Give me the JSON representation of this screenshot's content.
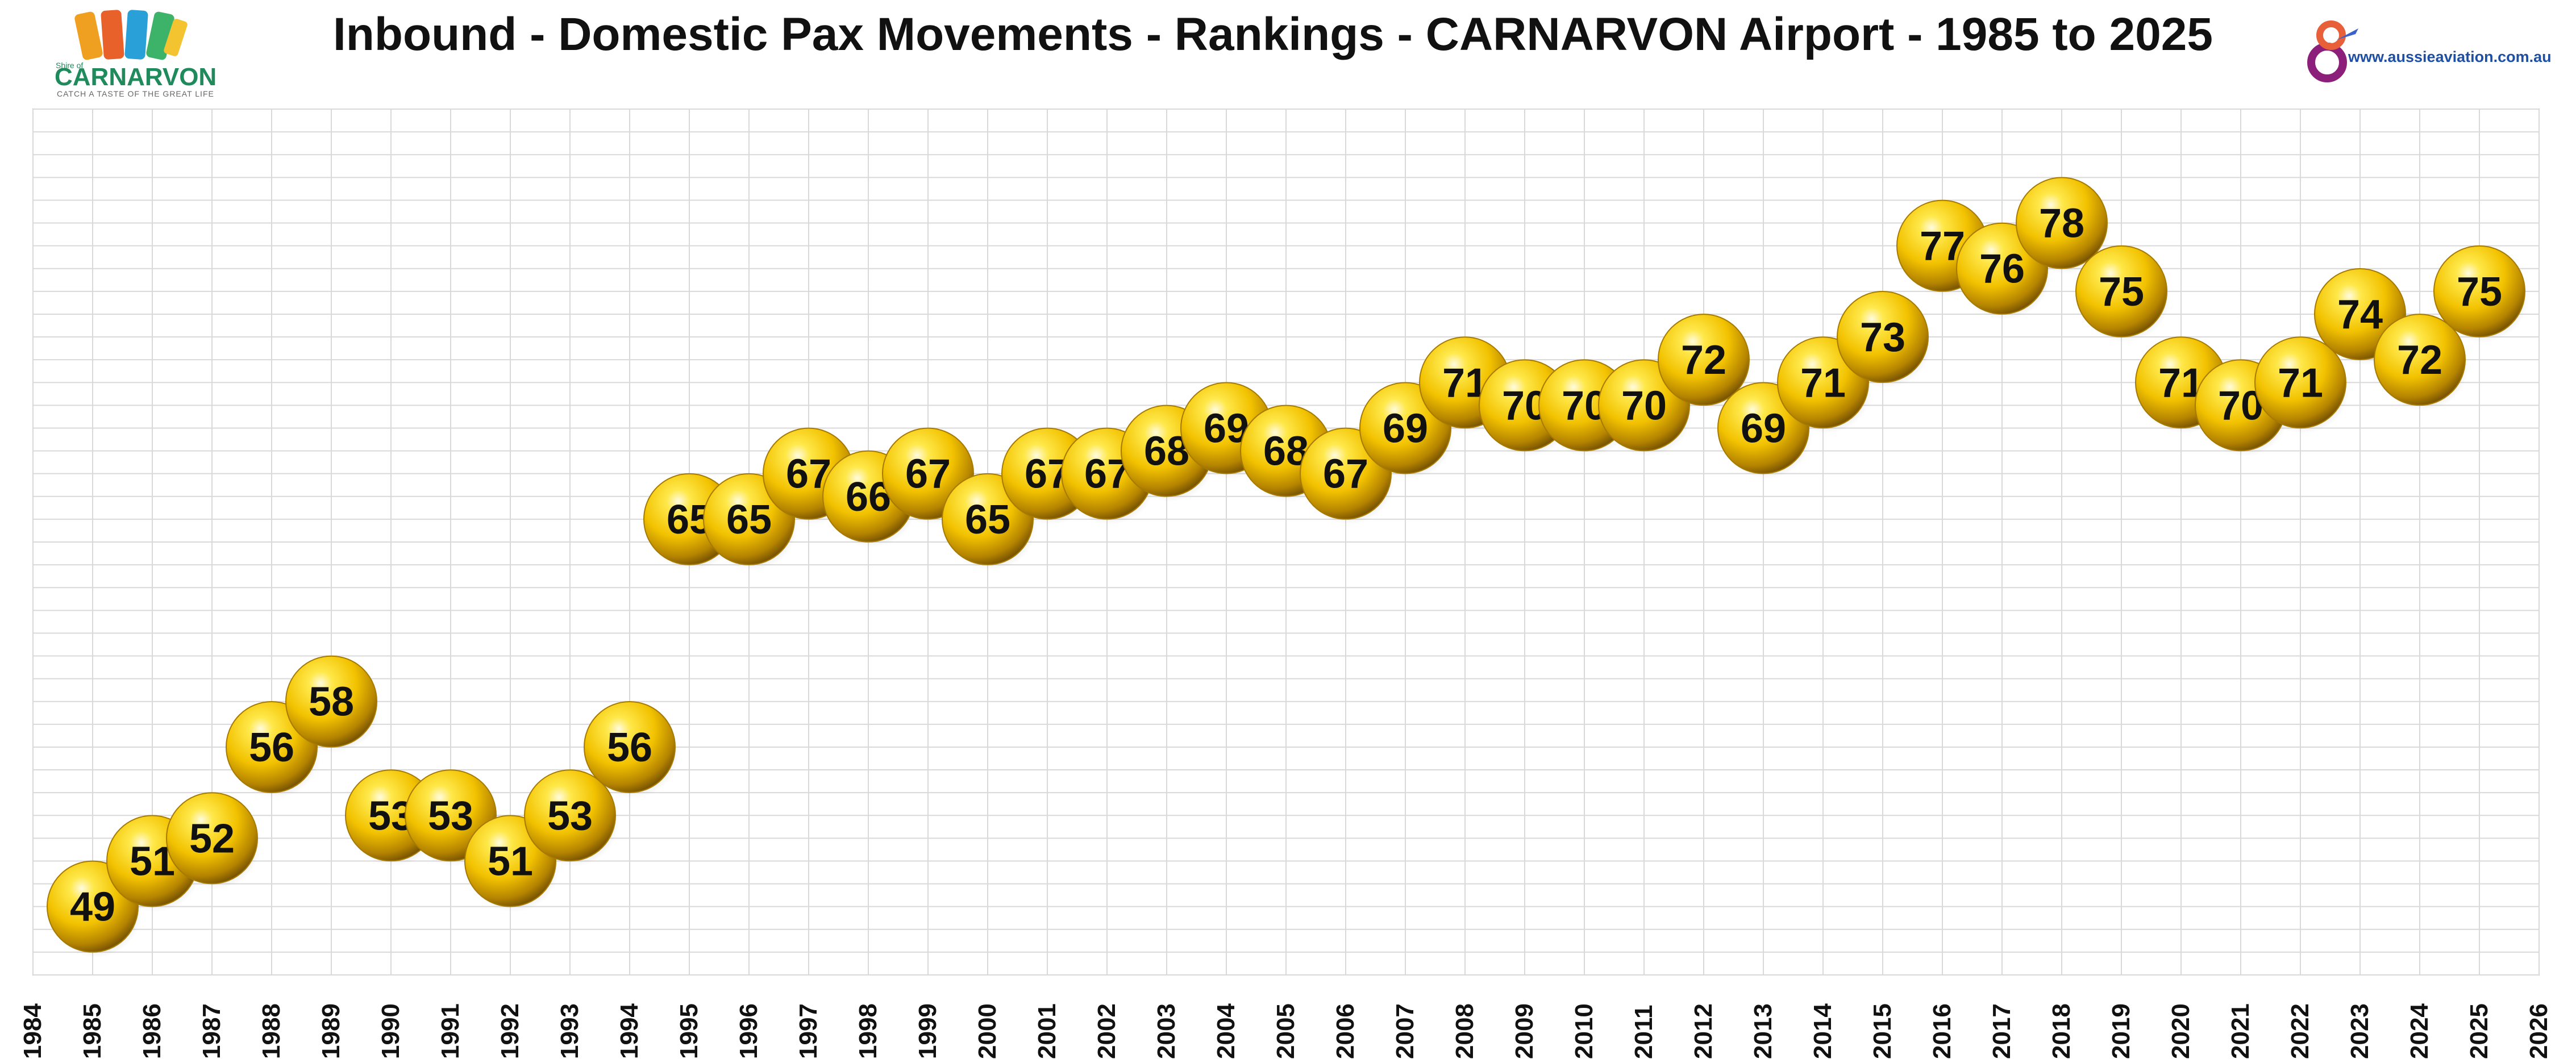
{
  "logos": {
    "left": {
      "small_text": "Shire of",
      "name": "CARNARVON",
      "tagline": "CATCH A TASTE OF THE GREAT LIFE"
    },
    "right": {
      "site": "www.aussieaviation.com.au"
    }
  },
  "colors": {
    "bubble": "#f2c200",
    "grid": "#d9d9d9",
    "text": "#111111"
  },
  "chart_data": {
    "type": "scatter",
    "title": "Inbound - Domestic Pax Movements - Rankings - CARNARVON Airport - 1985 to 2025",
    "xlabel": "",
    "ylabel": "",
    "xlim": [
      1984,
      2026
    ],
    "ylim": [
      43,
      81
    ],
    "grid": true,
    "x_ticks": [
      "1984",
      "1985",
      "1986",
      "1987",
      "1988",
      "1989",
      "1990",
      "1991",
      "1992",
      "1993",
      "1994",
      "1995",
      "1996",
      "1997",
      "1998",
      "1999",
      "2000",
      "2001",
      "2002",
      "2003",
      "2004",
      "2005",
      "2006",
      "2007",
      "2008",
      "2009",
      "2010",
      "2011",
      "2012",
      "2013",
      "2014",
      "2015",
      "2016",
      "2017",
      "2018",
      "2019",
      "2020",
      "2021",
      "2022",
      "2023",
      "2024",
      "2025",
      "2026"
    ],
    "series": [
      {
        "x": [
          1985,
          1986,
          1987,
          1988,
          1989,
          1990,
          1991,
          1992,
          1993,
          1994,
          1995,
          1996,
          1997,
          1998,
          1999,
          2000,
          2001,
          2002,
          2003,
          2004,
          2005,
          2006,
          2007,
          2008,
          2009,
          2010,
          2011,
          2012,
          2013,
          2014,
          2015,
          2016,
          2017,
          2018,
          2019,
          2020,
          2021,
          2022,
          2023,
          2024,
          2025
        ],
        "y": [
          46,
          48,
          49,
          53,
          55,
          50,
          50,
          48,
          50,
          53,
          63,
          63,
          65,
          64,
          65,
          63,
          65,
          65,
          66,
          67,
          66,
          65,
          67,
          69,
          68,
          68,
          68,
          70,
          67,
          69,
          71,
          75,
          74,
          76,
          73,
          69,
          68,
          69,
          72,
          70,
          73
        ],
        "labels": [
          "49",
          "51",
          "52",
          "56",
          "58",
          "53",
          "53",
          "51",
          "53",
          "56",
          "65",
          "65",
          "67",
          "66",
          "67",
          "65",
          "67",
          "67",
          "68",
          "69",
          "68",
          "67",
          "69",
          "71",
          "70",
          "70",
          "70",
          "72",
          "69",
          "71",
          "73",
          "77",
          "76",
          "78",
          "75",
          "71",
          "70",
          "71",
          "74",
          "72",
          "75"
        ]
      }
    ]
  }
}
